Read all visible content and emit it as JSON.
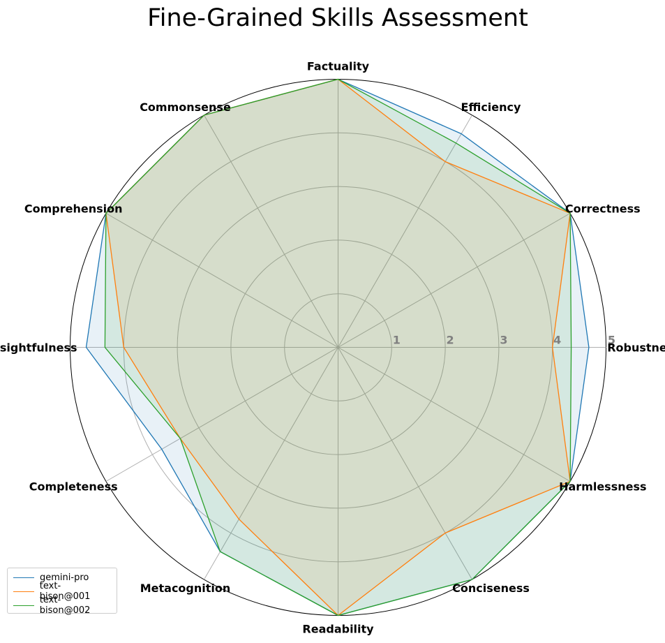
{
  "chart_data": {
    "type": "radar",
    "title": "Fine-Grained Skills Assessment",
    "categories": [
      "Robustness",
      "Correctness",
      "Efficiency",
      "Factuality",
      "Commonsense",
      "Comprehension",
      "Insightfulness",
      "Completeness",
      "Metacognition",
      "Readability",
      "Conciseness",
      "Harmlessness"
    ],
    "rlim": [
      0,
      5
    ],
    "rticks": [
      "1",
      "2",
      "3",
      "4",
      "5"
    ],
    "grid": true,
    "legend_position": "lower-left",
    "series": [
      {
        "name": "gemini-pro",
        "color": "#1f77b4",
        "values": [
          4.68,
          5.0,
          4.6,
          5.0,
          5.0,
          5.0,
          4.7,
          3.8,
          4.4,
          5.0,
          5.0,
          5.0
        ]
      },
      {
        "name": "text-bison@001",
        "color": "#ff7f0e",
        "values": [
          4.0,
          5.0,
          4.0,
          5.0,
          5.0,
          5.0,
          4.0,
          3.4,
          3.7,
          5.0,
          4.0,
          5.0
        ]
      },
      {
        "name": "text-bison@002",
        "color": "#2ca02c",
        "values": [
          4.35,
          5.0,
          4.4,
          5.0,
          5.0,
          5.0,
          4.35,
          3.4,
          4.4,
          5.0,
          5.0,
          5.0
        ]
      }
    ]
  }
}
